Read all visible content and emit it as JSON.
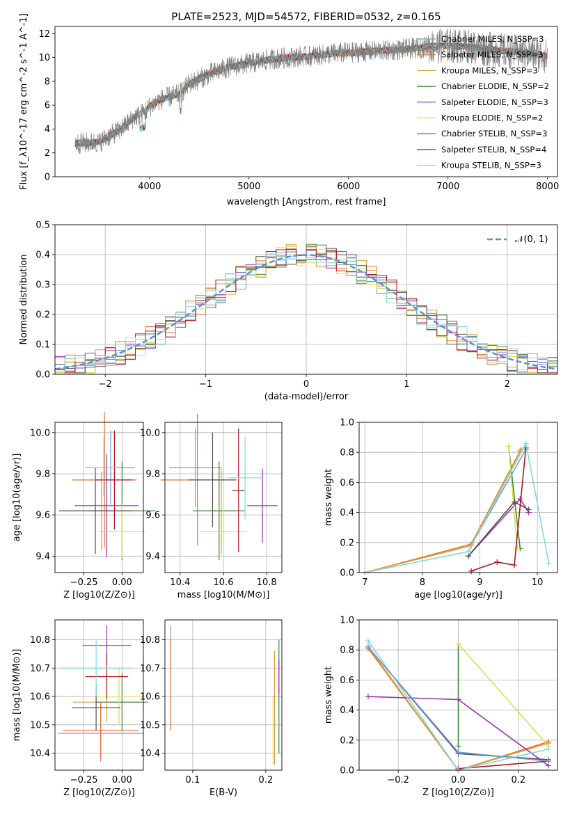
{
  "chart_data": [
    {
      "type": "line",
      "title": "PLATE=2523, MJD=54572, FIBERID=0532, z=0.165",
      "xlabel": "wavelength [Angstrom, rest frame]",
      "ylabel": "Flux [f_λ10^-17 erg cm^-2 s^-1 A^-1]",
      "xlim": [
        3050,
        8100
      ],
      "ylim": [
        0,
        12.6
      ],
      "xticks": [
        "4000",
        "5000",
        "6000",
        "7000",
        "8000"
      ],
      "yticks": [
        "0",
        "2",
        "4",
        "6",
        "8",
        "10",
        "12"
      ],
      "grid": true,
      "legend_position": "top-right",
      "data_series_name": "data",
      "data_color": "#808080",
      "continuum": {
        "x": [
          3250,
          3500,
          3550,
          3700,
          3850,
          3950,
          4000,
          4100,
          4200,
          4300,
          4400,
          4500,
          4600,
          4800,
          5000,
          5200,
          5400,
          5600,
          5800,
          6000,
          6200,
          6400,
          6600,
          6800,
          7000,
          7200,
          7400,
          7600,
          7800,
          8000
        ],
        "y": [
          2.8,
          2.9,
          3.2,
          3.9,
          5.0,
          5.4,
          5.9,
          6.4,
          6.7,
          6.9,
          7.8,
          8.2,
          8.6,
          9.2,
          9.5,
          9.8,
          10.0,
          10.1,
          10.3,
          10.4,
          10.5,
          10.6,
          10.7,
          10.9,
          11.0,
          10.9,
          10.7,
          10.5,
          10.4,
          10.1
        ]
      },
      "legend": [
        "Chabrier MILES, N_SSP=3",
        "Salpeter MILES, N_SSP=3",
        "Kroupa MILES, N_SSP=3",
        "Chabrier ELODIE, N_SSP=2",
        "Salpeter ELODIE, N_SSP=3",
        "Kroupa ELODIE, N_SSP=2",
        "Chabrier STELIB, N_SSP=3",
        "Salpeter STELIB, N_SSP=4",
        "Kroupa STELIB, N_SSP=3"
      ],
      "series_colors": [
        "#6f9fd8",
        "#e8722a",
        "#e0a030",
        "#3a8a3a",
        "#9b30b0",
        "#d8e050",
        "#505050",
        "#b01818",
        "#80d8e0"
      ]
    },
    {
      "type": "bar",
      "xlabel": "(data-model)/error",
      "ylabel": "Normed distribution",
      "xlim": [
        -2.5,
        2.5
      ],
      "ylim": [
        0,
        0.5
      ],
      "xticks": [
        "−2",
        "−1",
        "0",
        "1",
        "2"
      ],
      "yticks": [
        "0.0",
        "0.1",
        "0.2",
        "0.3",
        "0.4",
        "0.5"
      ],
      "grid": true,
      "legend": [
        "𝒩(0, 1)"
      ],
      "legend_position": "top-right",
      "curve": "normal pdf, mean 0, sigma 1",
      "curve_color": "#5b8ed8",
      "histogram_bin_width": 0.1
    },
    {
      "type": "scatter",
      "xlabel": "Z [log10(Z/Z⊙)]",
      "ylabel": "age [log10(age/yr)]",
      "xlim": [
        -0.44,
        0.14
      ],
      "ylim": [
        9.32,
        10.05
      ],
      "xticks": [
        "−0.25",
        "0.00"
      ],
      "yticks": [
        "9.4",
        "9.6",
        "9.8",
        "10.0"
      ],
      "points": [
        {
          "x": -0.075,
          "y": 9.83,
          "xerr": 0.16,
          "yerr": 0.18
        },
        {
          "x": -0.115,
          "y": 9.77,
          "xerr": 0.21,
          "yerr": 0.33
        },
        {
          "x": -0.135,
          "y": 9.62,
          "xerr": 0.25,
          "yerr": 0.19
        },
        {
          "x": 0.0,
          "y": 9.62,
          "xerr": 0.22,
          "yerr": 0.24
        },
        {
          "x": -0.1,
          "y": 9.645,
          "xerr": 0.21,
          "yerr": 0.25
        },
        {
          "x": 0.0,
          "y": 9.52,
          "xerr": 0.15,
          "yerr": 0.13
        },
        {
          "x": -0.175,
          "y": 9.62,
          "xerr": 0.24,
          "yerr": 0.21
        },
        {
          "x": -0.05,
          "y": 9.77,
          "xerr": 0.12,
          "yerr": 0.24
        },
        {
          "x": -0.12,
          "y": 9.83,
          "xerr": 0.09,
          "yerr": 0.14
        }
      ]
    },
    {
      "type": "scatter",
      "xlabel": "mass [log10(M/M⊙)]",
      "xlim": [
        10.33,
        10.87
      ],
      "ylim": [
        9.32,
        10.05
      ],
      "xticks": [
        "10.4",
        "10.6",
        "10.8"
      ],
      "yticks": [
        "9.4",
        "9.6",
        "9.8",
        "10.0"
      ],
      "points": [
        {
          "x": 10.47,
          "y": 9.83,
          "xerr": 0.12,
          "yerr": 0.19
        },
        {
          "x": 10.48,
          "y": 9.77,
          "xerr": 0.17,
          "yerr": 0.32
        },
        {
          "x": 10.59,
          "y": 9.62,
          "xerr": 0.09,
          "yerr": 0.21
        },
        {
          "x": 10.58,
          "y": 9.62,
          "xerr": 0.12,
          "yerr": 0.24
        },
        {
          "x": 10.78,
          "y": 9.645,
          "xerr": 0.07,
          "yerr": 0.18
        },
        {
          "x": 10.6,
          "y": 9.52,
          "xerr": 0.11,
          "yerr": 0.14
        },
        {
          "x": 10.55,
          "y": 9.77,
          "xerr": 0.11,
          "yerr": 0.23
        },
        {
          "x": 10.67,
          "y": 9.72,
          "xerr": 0.03,
          "yerr": 0.3
        },
        {
          "x": 10.7,
          "y": 9.78,
          "xerr": 0.08,
          "yerr": 0.2
        }
      ]
    },
    {
      "type": "line",
      "xlabel": "age [log10(age/yr)]",
      "ylabel": "mass weight",
      "xlim": [
        6.9,
        10.35
      ],
      "ylim": [
        0,
        1.0
      ],
      "xticks": [
        "7",
        "8",
        "9",
        "10"
      ],
      "yticks": [
        "0.0",
        "0.2",
        "0.4",
        "0.6",
        "0.8",
        "1.0"
      ],
      "series": [
        {
          "x": [
            7.0,
            8.85,
            9.8
          ],
          "y": [
            0.0,
            0.18,
            0.82
          ]
        },
        {
          "x": [
            7.0,
            8.85,
            9.7
          ],
          "y": [
            0.0,
            0.19,
            0.81
          ]
        },
        {
          "x": [
            7.0,
            8.85,
            9.72
          ],
          "y": [
            0.0,
            0.18,
            0.82
          ]
        },
        {
          "x": [
            9.5,
            9.7
          ],
          "y": [
            0.84,
            0.16
          ]
        },
        {
          "x": [
            8.8,
            9.7,
            9.85
          ],
          "y": [
            0.11,
            0.49,
            0.4
          ]
        },
        {
          "x": [
            9.5,
            9.65
          ],
          "y": [
            0.84,
            0.16
          ]
        },
        {
          "x": [
            8.8,
            9.6,
            9.85
          ],
          "y": [
            0.11,
            0.47,
            0.42
          ]
        },
        {
          "x": [
            8.85,
            9.3,
            9.6,
            9.8
          ],
          "y": [
            0.01,
            0.07,
            0.05,
            0.83
          ]
        },
        {
          "x": [
            7.0,
            8.8,
            9.8,
            10.2
          ],
          "y": [
            0.0,
            0.14,
            0.86,
            0.06
          ]
        }
      ]
    },
    {
      "type": "scatter",
      "xlabel": "Z [log10(Z/Z⊙)]",
      "ylabel": "mass [log10(M/M⊙)]",
      "xlim": [
        -0.44,
        0.14
      ],
      "ylim": [
        10.34,
        10.87
      ],
      "xticks": [
        "−0.25",
        "0.00"
      ],
      "yticks": [
        "10.4",
        "10.5",
        "10.6",
        "10.7",
        "10.8"
      ],
      "points": [
        {
          "x": -0.14,
          "y": 10.47,
          "xerr": 0.28,
          "yerr": 0.1
        },
        {
          "x": -0.14,
          "y": 10.48,
          "xerr": 0.25,
          "yerr": 0.1
        },
        {
          "x": -0.1,
          "y": 10.58,
          "xerr": 0.22,
          "yerr": 0.07
        },
        {
          "x": 0.0,
          "y": 10.58,
          "xerr": 0.17,
          "yerr": 0.1
        },
        {
          "x": -0.1,
          "y": 10.78,
          "xerr": 0.16,
          "yerr": 0.07
        },
        {
          "x": -0.02,
          "y": 10.6,
          "xerr": 0.15,
          "yerr": 0.1
        },
        {
          "x": -0.17,
          "y": 10.56,
          "xerr": 0.16,
          "yerr": 0.08
        },
        {
          "x": -0.1,
          "y": 10.67,
          "xerr": 0.14,
          "yerr": 0.08
        },
        {
          "x": -0.17,
          "y": 10.7,
          "xerr": 0.24,
          "yerr": 0.1
        }
      ]
    },
    {
      "type": "scatter",
      "xlabel": "E(B-V)",
      "xlim": [
        0.062,
        0.222
      ],
      "ylim": [
        10.34,
        10.87
      ],
      "xticks": [
        "0.1",
        "0.2"
      ],
      "yticks": [
        "10.4",
        "10.5",
        "10.6",
        "10.7",
        "10.8"
      ],
      "points": [
        {
          "x": 0.07,
          "y": 10.79,
          "yerr": 0.06
        },
        {
          "x": 0.07,
          "y": 10.64,
          "yerr": 0.16
        },
        {
          "x": 0.212,
          "y": 10.56,
          "yerr": 0.2
        },
        {
          "x": 0.218,
          "y": 10.6,
          "yerr": 0.2
        },
        {
          "x": 0.218,
          "y": 10.67,
          "yerr": 0.06
        },
        {
          "x": 0.21,
          "y": 10.48,
          "yerr": 0.12
        }
      ]
    },
    {
      "type": "line",
      "xlabel": "Z [log10(Z/Z⊙)]",
      "ylabel": "mass weight",
      "xlim": [
        -0.33,
        0.33
      ],
      "ylim": [
        0,
        1.0
      ],
      "xticks": [
        "−0.2",
        "0.0",
        "0.2"
      ],
      "yticks": [
        "0.0",
        "0.2",
        "0.4",
        "0.6",
        "0.8",
        "1.0"
      ],
      "series": [
        {
          "x": [
            -0.3,
            0.0,
            0.3
          ],
          "y": [
            0.82,
            0.0,
            0.18
          ]
        },
        {
          "x": [
            -0.3,
            0.0,
            0.3
          ],
          "y": [
            0.81,
            0.0,
            0.19
          ]
        },
        {
          "x": [
            -0.3,
            0.0,
            0.3
          ],
          "y": [
            0.82,
            0.0,
            0.18
          ]
        },
        {
          "x": [
            0.0,
            0.0
          ],
          "y": [
            0.84,
            0.16
          ]
        },
        {
          "x": [
            -0.3,
            0.0,
            0.3
          ],
          "y": [
            0.49,
            0.47,
            0.03
          ]
        },
        {
          "x": [
            0.0,
            0.3
          ],
          "y": [
            0.84,
            0.16
          ]
        },
        {
          "x": [
            -0.3,
            0.0,
            0.3
          ],
          "y": [
            0.82,
            0.11,
            0.07
          ]
        },
        {
          "x": [
            0.0,
            0.3
          ],
          "y": [
            0.01,
            0.06
          ]
        },
        {
          "x": [
            -0.3,
            0.0,
            0.3
          ],
          "y": [
            0.86,
            0.0,
            0.14
          ]
        },
        {
          "x": [
            -0.3,
            0.0,
            0.3
          ],
          "y": [
            0.82,
            0.12,
            0.06
          ]
        }
      ]
    }
  ]
}
